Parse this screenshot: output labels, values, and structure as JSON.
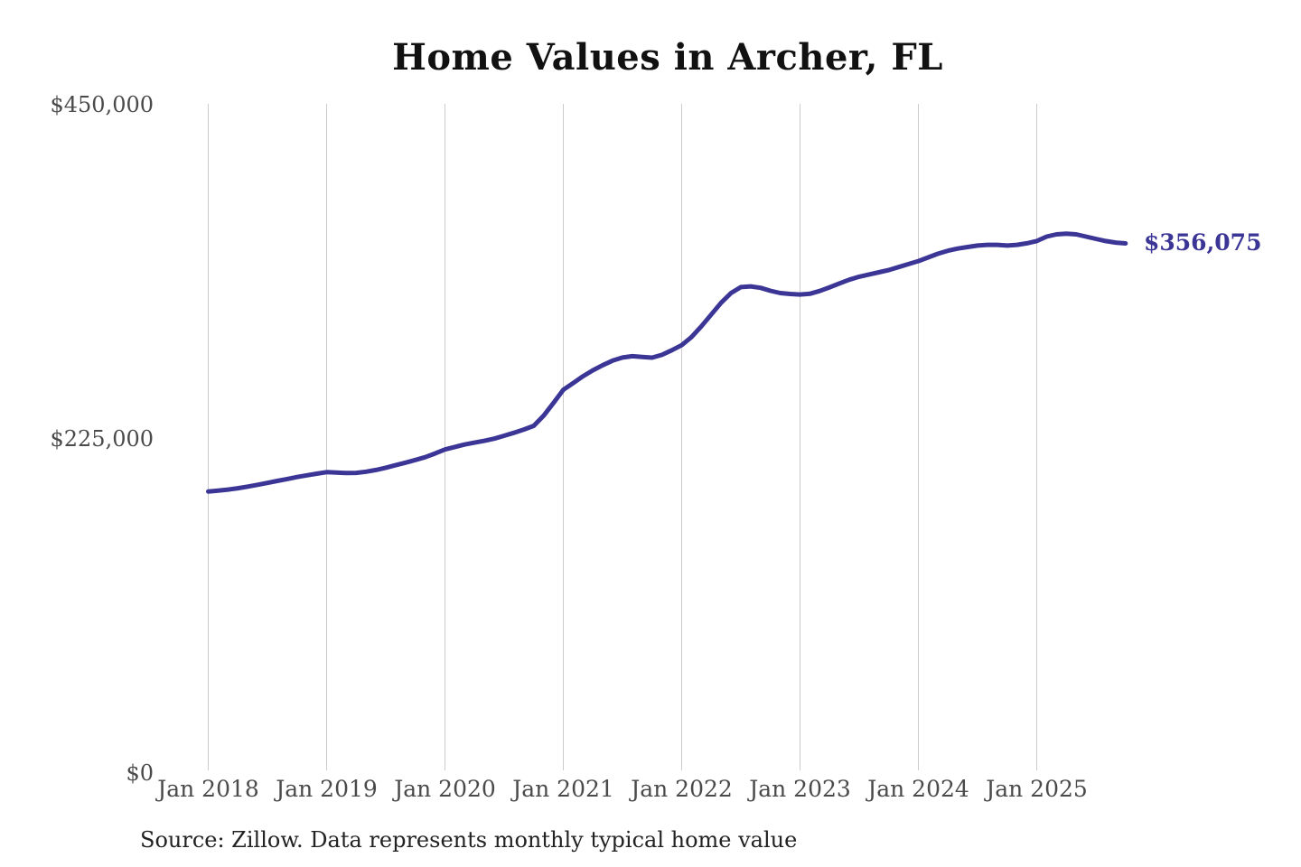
{
  "page": {
    "background": "#ffffff"
  },
  "title": "Home Values in Archer, FL",
  "source_note": "Source: Zillow. Data represents monthly typical home value",
  "chart_data": {
    "type": "line",
    "title": "Home Values in Archer, FL",
    "series_name": "Monthly typical home value",
    "frequency": "monthly",
    "start_month": "2018-01",
    "end_month": "2025-10",
    "values": [
      189000,
      189600,
      190300,
      191200,
      192300,
      193500,
      194800,
      196100,
      197400,
      198700,
      199900,
      201000,
      202000,
      201800,
      201400,
      201500,
      202300,
      203500,
      205000,
      206700,
      208400,
      210200,
      212100,
      214600,
      217300,
      219000,
      220600,
      221900,
      223100,
      224600,
      226500,
      228500,
      230700,
      233200,
      240000,
      248600,
      257500,
      262000,
      266600,
      270600,
      274100,
      277100,
      279200,
      280100,
      279600,
      279100,
      281000,
      284100,
      287500,
      293000,
      300200,
      308200,
      316100,
      322600,
      326600,
      327100,
      326100,
      324100,
      322600,
      322000,
      321600,
      322100,
      324000,
      326500,
      329100,
      331600,
      333600,
      335100,
      336600,
      338100,
      340100,
      342100,
      344100,
      346600,
      349100,
      351100,
      352600,
      353600,
      354600,
      355100,
      355100,
      354600,
      355100,
      356100,
      357600,
      360600,
      362100,
      362600,
      362100,
      360600,
      359100,
      357600,
      356600,
      356075
    ],
    "x_tick_labels": [
      "Jan 2018",
      "Jan 2019",
      "Jan 2020",
      "Jan 2021",
      "Jan 2022",
      "Jan 2023",
      "Jan 2024",
      "Jan 2025"
    ],
    "y_ticks": [
      {
        "label": "$450,000",
        "value": 450000
      },
      {
        "label": "$225,000",
        "value": 225000
      },
      {
        "label": "$0",
        "value": 0
      }
    ],
    "ylim": [
      0,
      450000
    ],
    "end_label": "$356,075",
    "end_value": 356075,
    "line_color": "#3b3596",
    "end_label_color": "#3b3596",
    "grid_color": "#cccccc",
    "grid": "vertical-only",
    "legend": "none"
  }
}
